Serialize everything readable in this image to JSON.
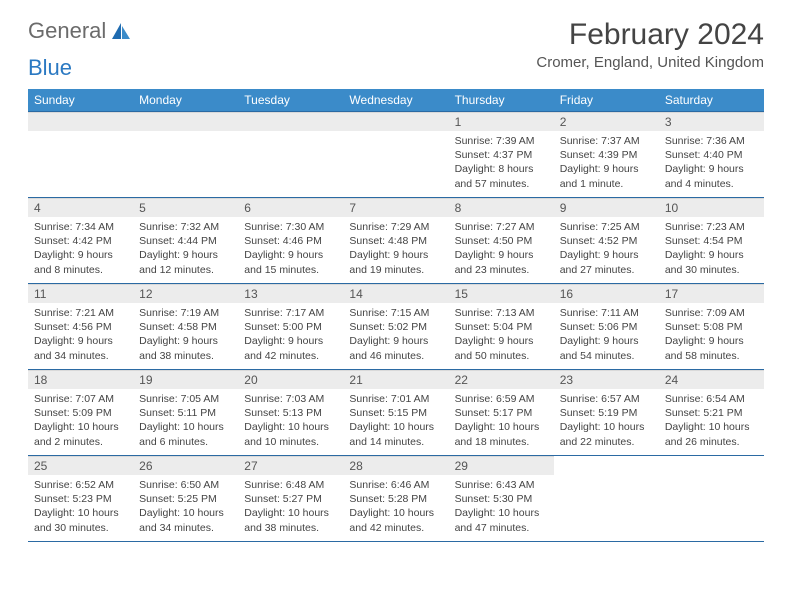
{
  "logo": {
    "part1": "General",
    "part2": "Blue"
  },
  "title": "February 2024",
  "location": "Cromer, England, United Kingdom",
  "headers": [
    "Sunday",
    "Monday",
    "Tuesday",
    "Wednesday",
    "Thursday",
    "Friday",
    "Saturday"
  ],
  "colors": {
    "header_bg": "#3b8bc9",
    "header_text": "#ffffff",
    "daynum_bg": "#ececec",
    "week_border": "#2b6aa3",
    "logo_grey": "#6b6b6b",
    "logo_blue": "#2b79c2"
  },
  "weeks": [
    [
      null,
      null,
      null,
      null,
      {
        "n": "1",
        "sr": "7:39 AM",
        "ss": "4:37 PM",
        "dl": "8 hours and 57 minutes."
      },
      {
        "n": "2",
        "sr": "7:37 AM",
        "ss": "4:39 PM",
        "dl": "9 hours and 1 minute."
      },
      {
        "n": "3",
        "sr": "7:36 AM",
        "ss": "4:40 PM",
        "dl": "9 hours and 4 minutes."
      }
    ],
    [
      {
        "n": "4",
        "sr": "7:34 AM",
        "ss": "4:42 PM",
        "dl": "9 hours and 8 minutes."
      },
      {
        "n": "5",
        "sr": "7:32 AM",
        "ss": "4:44 PM",
        "dl": "9 hours and 12 minutes."
      },
      {
        "n": "6",
        "sr": "7:30 AM",
        "ss": "4:46 PM",
        "dl": "9 hours and 15 minutes."
      },
      {
        "n": "7",
        "sr": "7:29 AM",
        "ss": "4:48 PM",
        "dl": "9 hours and 19 minutes."
      },
      {
        "n": "8",
        "sr": "7:27 AM",
        "ss": "4:50 PM",
        "dl": "9 hours and 23 minutes."
      },
      {
        "n": "9",
        "sr": "7:25 AM",
        "ss": "4:52 PM",
        "dl": "9 hours and 27 minutes."
      },
      {
        "n": "10",
        "sr": "7:23 AM",
        "ss": "4:54 PM",
        "dl": "9 hours and 30 minutes."
      }
    ],
    [
      {
        "n": "11",
        "sr": "7:21 AM",
        "ss": "4:56 PM",
        "dl": "9 hours and 34 minutes."
      },
      {
        "n": "12",
        "sr": "7:19 AM",
        "ss": "4:58 PM",
        "dl": "9 hours and 38 minutes."
      },
      {
        "n": "13",
        "sr": "7:17 AM",
        "ss": "5:00 PM",
        "dl": "9 hours and 42 minutes."
      },
      {
        "n": "14",
        "sr": "7:15 AM",
        "ss": "5:02 PM",
        "dl": "9 hours and 46 minutes."
      },
      {
        "n": "15",
        "sr": "7:13 AM",
        "ss": "5:04 PM",
        "dl": "9 hours and 50 minutes."
      },
      {
        "n": "16",
        "sr": "7:11 AM",
        "ss": "5:06 PM",
        "dl": "9 hours and 54 minutes."
      },
      {
        "n": "17",
        "sr": "7:09 AM",
        "ss": "5:08 PM",
        "dl": "9 hours and 58 minutes."
      }
    ],
    [
      {
        "n": "18",
        "sr": "7:07 AM",
        "ss": "5:09 PM",
        "dl": "10 hours and 2 minutes."
      },
      {
        "n": "19",
        "sr": "7:05 AM",
        "ss": "5:11 PM",
        "dl": "10 hours and 6 minutes."
      },
      {
        "n": "20",
        "sr": "7:03 AM",
        "ss": "5:13 PM",
        "dl": "10 hours and 10 minutes."
      },
      {
        "n": "21",
        "sr": "7:01 AM",
        "ss": "5:15 PM",
        "dl": "10 hours and 14 minutes."
      },
      {
        "n": "22",
        "sr": "6:59 AM",
        "ss": "5:17 PM",
        "dl": "10 hours and 18 minutes."
      },
      {
        "n": "23",
        "sr": "6:57 AM",
        "ss": "5:19 PM",
        "dl": "10 hours and 22 minutes."
      },
      {
        "n": "24",
        "sr": "6:54 AM",
        "ss": "5:21 PM",
        "dl": "10 hours and 26 minutes."
      }
    ],
    [
      {
        "n": "25",
        "sr": "6:52 AM",
        "ss": "5:23 PM",
        "dl": "10 hours and 30 minutes."
      },
      {
        "n": "26",
        "sr": "6:50 AM",
        "ss": "5:25 PM",
        "dl": "10 hours and 34 minutes."
      },
      {
        "n": "27",
        "sr": "6:48 AM",
        "ss": "5:27 PM",
        "dl": "10 hours and 38 minutes."
      },
      {
        "n": "28",
        "sr": "6:46 AM",
        "ss": "5:28 PM",
        "dl": "10 hours and 42 minutes."
      },
      {
        "n": "29",
        "sr": "6:43 AM",
        "ss": "5:30 PM",
        "dl": "10 hours and 47 minutes."
      },
      null,
      null
    ]
  ],
  "labels": {
    "sunrise": "Sunrise: ",
    "sunset": "Sunset: ",
    "daylight": "Daylight: "
  }
}
